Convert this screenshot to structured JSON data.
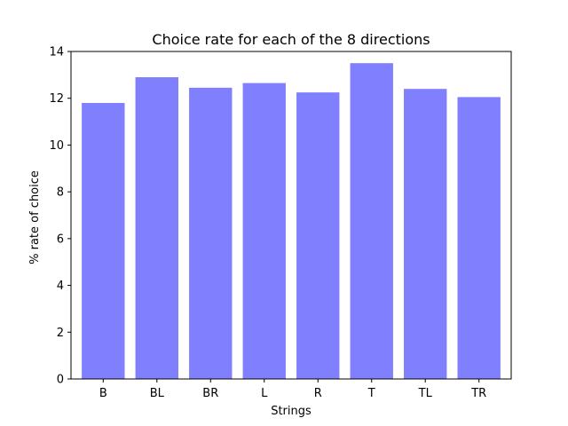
{
  "colors": {
    "bar": "#8080ff",
    "axis": "#000000",
    "background": "#ffffff"
  },
  "chart_data": {
    "type": "bar",
    "title": "Choice rate for each of the 8 directions",
    "xlabel": "Strings",
    "ylabel": "% rate of choice",
    "categories": [
      "B",
      "BL",
      "BR",
      "L",
      "R",
      "T",
      "TL",
      "TR"
    ],
    "values": [
      11.8,
      12.9,
      12.45,
      12.65,
      12.25,
      13.5,
      12.4,
      12.05
    ],
    "ylim": [
      0,
      14
    ],
    "yticks": [
      0,
      2,
      4,
      6,
      8,
      10,
      12,
      14
    ],
    "grid": false,
    "legend": false
  }
}
